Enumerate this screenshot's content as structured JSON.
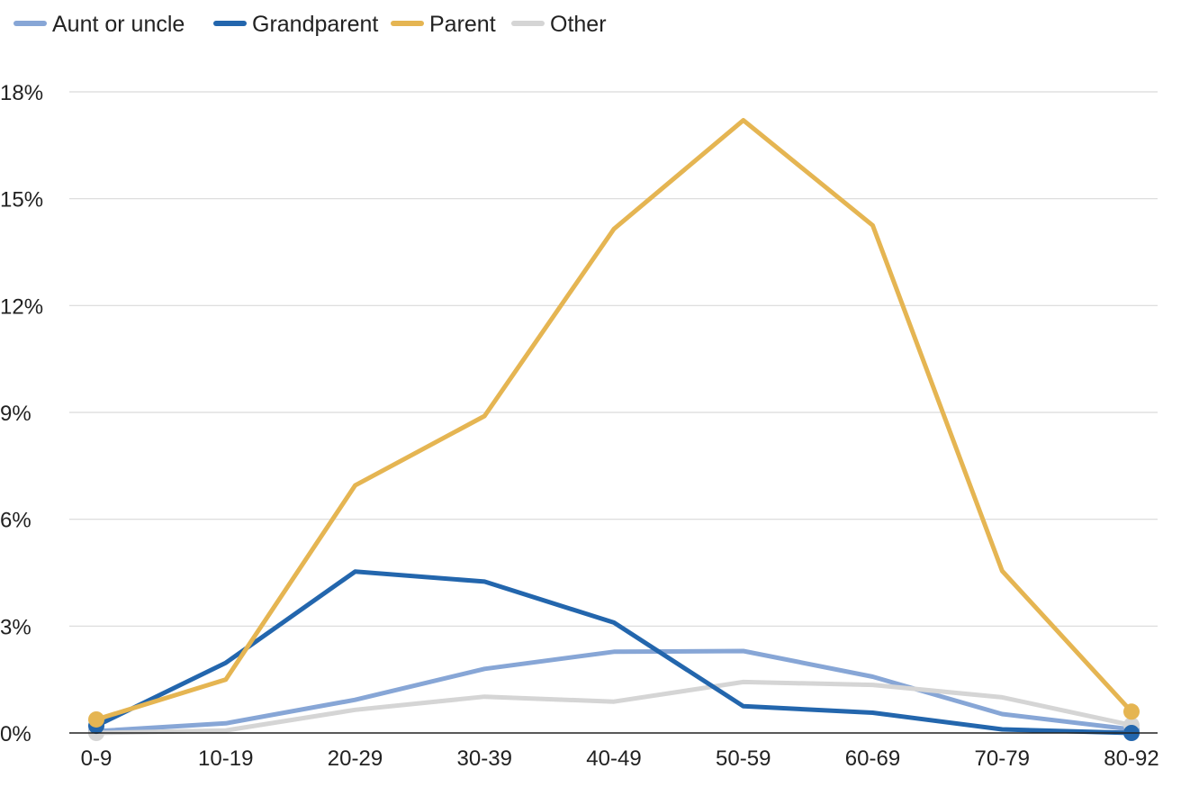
{
  "chart_data": {
    "type": "line",
    "title": "",
    "xlabel": "",
    "ylabel": "",
    "categories": [
      "0-9",
      "10-19",
      "20-29",
      "30-39",
      "40-49",
      "50-59",
      "60-69",
      "70-79",
      "80-92"
    ],
    "ylim": [
      0,
      18
    ],
    "yticks": [
      0,
      3,
      6,
      9,
      12,
      15,
      18
    ],
    "ytick_labels": [
      "0%",
      "3%",
      "6%",
      "9%",
      "12%",
      "15%",
      "18%"
    ],
    "grid": true,
    "legend_position": "top-left",
    "series": [
      {
        "name": "Aunt or uncle",
        "color": "#87a6d6",
        "values": [
          0.05,
          0.27,
          0.93,
          1.8,
          2.28,
          2.3,
          1.58,
          0.53,
          0.1
        ]
      },
      {
        "name": "Other",
        "color": "#d5d5d5",
        "values": [
          0.0,
          0.07,
          0.65,
          1.02,
          0.88,
          1.43,
          1.35,
          1.0,
          0.22
        ]
      },
      {
        "name": "Grandparent",
        "color": "#2366ad",
        "values": [
          0.2,
          1.97,
          4.53,
          4.25,
          3.1,
          0.75,
          0.57,
          0.1,
          0.0
        ]
      },
      {
        "name": "Parent",
        "color": "#e5b552",
        "values": [
          0.38,
          1.5,
          6.95,
          8.9,
          14.15,
          17.2,
          14.25,
          4.55,
          0.6
        ]
      }
    ],
    "legend": [
      {
        "name": "Aunt or uncle",
        "color": "#87a6d6"
      },
      {
        "name": "Grandparent",
        "color": "#2366ad"
      },
      {
        "name": "Parent",
        "color": "#e5b552"
      },
      {
        "name": "Other",
        "color": "#d5d5d5"
      }
    ]
  }
}
